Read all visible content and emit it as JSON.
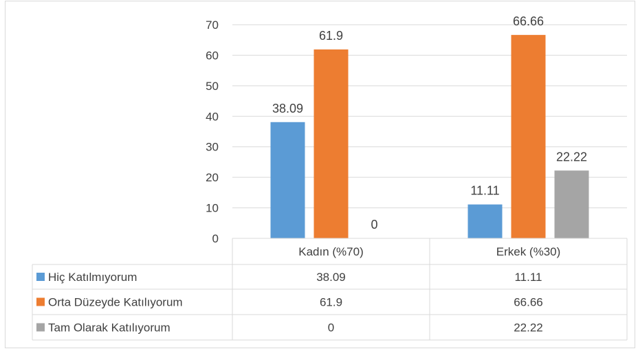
{
  "chart_data": {
    "type": "bar",
    "categories": [
      "Kadın (%70)",
      "Erkek (%30)"
    ],
    "series": [
      {
        "name": "Hiç Katılmıyorum",
        "values": [
          38.09,
          11.11
        ],
        "color": "#5b9bd5"
      },
      {
        "name": "Orta Düzeyde Katılıyorum",
        "values": [
          61.9,
          66.66
        ],
        "color": "#ed7d31"
      },
      {
        "name": "Tam Olarak Katılıyorum",
        "values": [
          0,
          22.22
        ],
        "color": "#a5a5a5"
      }
    ],
    "data_labels": [
      [
        "38.09",
        "11.11"
      ],
      [
        "61.9",
        "66.66"
      ],
      [
        "0",
        "22.22"
      ]
    ],
    "yticks": [
      "0",
      "10",
      "20",
      "30",
      "40",
      "50",
      "60",
      "70"
    ],
    "ylim": [
      0,
      70
    ],
    "grid": true,
    "legend": "data-table"
  }
}
